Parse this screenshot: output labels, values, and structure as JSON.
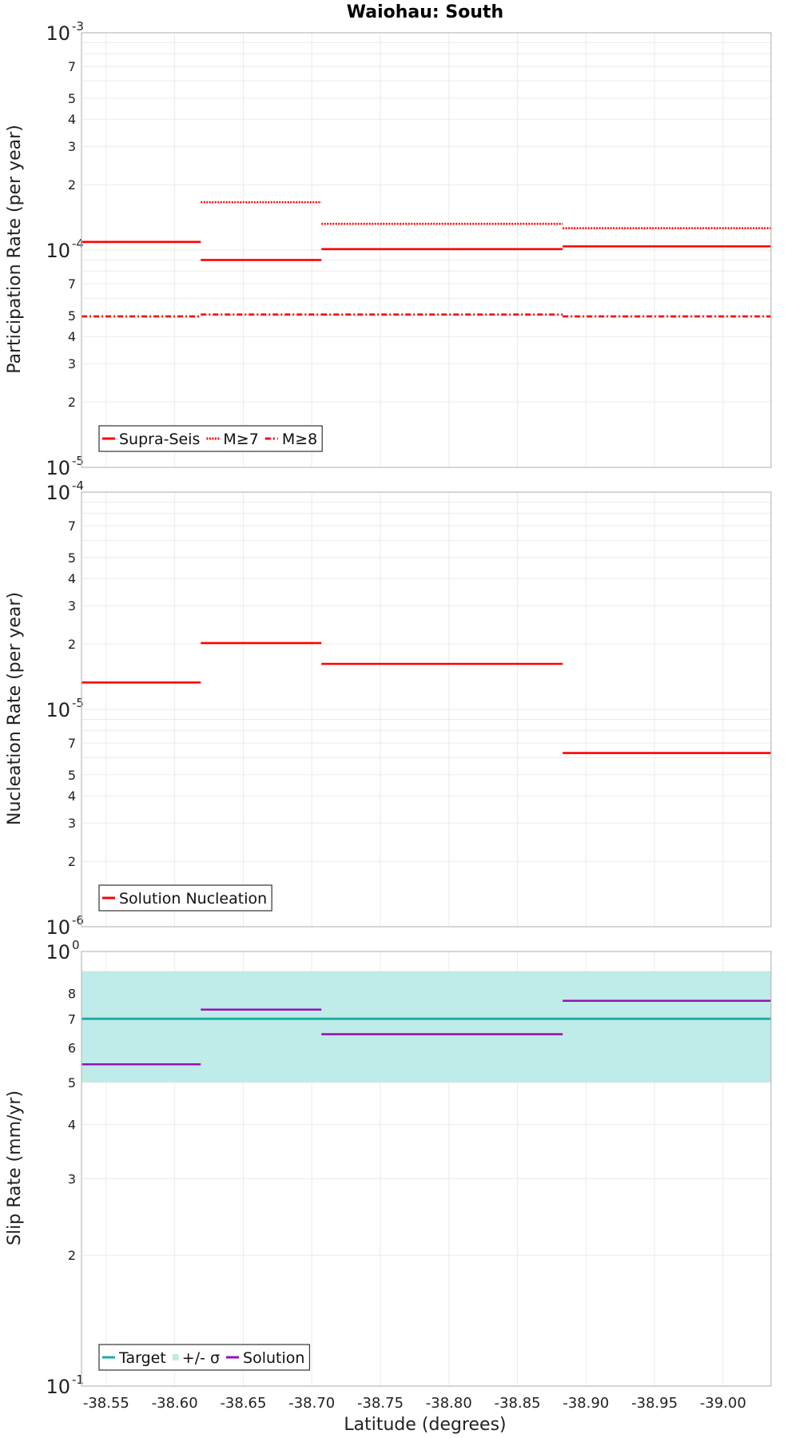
{
  "figure_title": "Waiohau: South",
  "colors": {
    "red": "#ff0000",
    "teal": "#1aaea3",
    "band": "#bfebe8",
    "purple": "#9a0fb5",
    "grid": "#ebebeb",
    "frame": "#bbbbbb"
  },
  "chart_data": [
    {
      "type": "line",
      "scale": "log",
      "ylabel": "Participation Rate (per year)",
      "ylim": [
        1e-05,
        0.001
      ],
      "decades": [
        {
          "base": "10",
          "exp": "-5",
          "value": 1e-05
        },
        {
          "base": "10",
          "exp": "-4",
          "value": 0.0001
        },
        {
          "base": "10",
          "exp": "-3",
          "value": 0.001
        }
      ],
      "minor_ticks": [
        {
          "label": "2",
          "value": 2e-05
        },
        {
          "label": "3",
          "value": 3e-05
        },
        {
          "label": "4",
          "value": 4e-05
        },
        {
          "label": "5",
          "value": 5e-05
        },
        {
          "label": "7",
          "value": 7e-05
        },
        {
          "label": "2",
          "value": 0.0002
        },
        {
          "label": "3",
          "value": 0.0003
        },
        {
          "label": "4",
          "value": 0.0004
        },
        {
          "label": "5",
          "value": 0.0005
        },
        {
          "label": "7",
          "value": 0.0007
        }
      ],
      "segment_x": [
        [
          -38.532,
          -38.619
        ],
        [
          -38.619,
          -38.707
        ],
        [
          -38.707,
          -38.883
        ],
        [
          -38.883,
          -39.035
        ]
      ],
      "series": [
        {
          "name": "Supra-Seis",
          "style": "solid",
          "color": "#ff0000",
          "values": [
            0.000109,
            9e-05,
            0.000101,
            0.000104
          ]
        },
        {
          "name": "M≥7",
          "style": "dotted",
          "color": "#ff0000",
          "values": [
            0.000109,
            0.000166,
            0.000132,
            0.000126
          ]
        },
        {
          "name": "M≥8",
          "style": "dashdot",
          "color": "#ff0000",
          "values": [
            4.95e-05,
            5.05e-05,
            5.05e-05,
            4.95e-05
          ]
        }
      ],
      "legend": {
        "position": "bottom-left",
        "entries": [
          {
            "label": "Supra-Seis",
            "style": "solid"
          },
          {
            "label": "M≥7",
            "style": "dotted"
          },
          {
            "label": "M≥8",
            "style": "dashdot"
          }
        ]
      }
    },
    {
      "type": "line",
      "scale": "log",
      "ylabel": "Nucleation Rate (per year)",
      "ylim": [
        1e-06,
        0.0001
      ],
      "decades": [
        {
          "base": "10",
          "exp": "-6",
          "value": 1e-06
        },
        {
          "base": "10",
          "exp": "-5",
          "value": 1e-05
        },
        {
          "base": "10",
          "exp": "-4",
          "value": 0.0001
        }
      ],
      "minor_ticks": [
        {
          "label": "2",
          "value": 2e-06
        },
        {
          "label": "3",
          "value": 3e-06
        },
        {
          "label": "4",
          "value": 4e-06
        },
        {
          "label": "5",
          "value": 5e-06
        },
        {
          "label": "7",
          "value": 7e-06
        },
        {
          "label": "2",
          "value": 2e-05
        },
        {
          "label": "3",
          "value": 3e-05
        },
        {
          "label": "4",
          "value": 4e-05
        },
        {
          "label": "5",
          "value": 5e-05
        },
        {
          "label": "7",
          "value": 7e-05
        }
      ],
      "segment_x": [
        [
          -38.532,
          -38.619
        ],
        [
          -38.619,
          -38.707
        ],
        [
          -38.707,
          -38.883
        ],
        [
          -38.883,
          -39.035
        ]
      ],
      "series": [
        {
          "name": "Solution Nucleation",
          "style": "solid",
          "color": "#ff0000",
          "values": [
            1.33e-05,
            2.02e-05,
            1.62e-05,
            6.3e-06
          ]
        }
      ],
      "legend": {
        "position": "bottom-left",
        "entries": [
          {
            "label": "Solution Nucleation",
            "style": "solid"
          }
        ]
      }
    },
    {
      "type": "line",
      "scale": "log",
      "ylabel": "Slip Rate (mm/yr)",
      "ylim": [
        0.1,
        1
      ],
      "decades": [
        {
          "base": "10",
          "exp": "-1",
          "value": 0.1
        },
        {
          "base": "10",
          "exp": "0",
          "value": 1
        }
      ],
      "minor_ticks": [
        {
          "label": "2",
          "value": 0.2
        },
        {
          "label": "3",
          "value": 0.3
        },
        {
          "label": "4",
          "value": 0.4
        },
        {
          "label": "5",
          "value": 0.5
        },
        {
          "label": "6",
          "value": 0.6
        },
        {
          "label": "7",
          "value": 0.7
        },
        {
          "label": "8",
          "value": 0.8
        }
      ],
      "segment_x": [
        [
          -38.532,
          -38.619
        ],
        [
          -38.619,
          -38.707
        ],
        [
          -38.707,
          -38.883
        ],
        [
          -38.883,
          -39.035
        ]
      ],
      "target": {
        "name": "Target",
        "value": 0.7,
        "lower": 0.5,
        "upper": 0.9,
        "x_range": [
          -38.532,
          -39.035
        ]
      },
      "series": [
        {
          "name": "Solution",
          "style": "solid",
          "color": "#9a0fb5",
          "values": [
            0.55,
            0.735,
            0.645,
            0.77
          ]
        }
      ],
      "legend": {
        "position": "bottom-left",
        "entries": [
          {
            "label": "Target",
            "style": "solid"
          },
          {
            "label": "+/- σ",
            "style": "band"
          },
          {
            "label": "Solution",
            "style": "solid"
          }
        ]
      }
    }
  ],
  "x_axis": {
    "label": "Latitude (degrees)",
    "range": [
      -38.532,
      -39.035
    ],
    "ticks": [
      {
        "label": "-38.55",
        "value": -38.55
      },
      {
        "label": "-38.60",
        "value": -38.6
      },
      {
        "label": "-38.65",
        "value": -38.65
      },
      {
        "label": "-38.70",
        "value": -38.7
      },
      {
        "label": "-38.75",
        "value": -38.75
      },
      {
        "label": "-38.80",
        "value": -38.8
      },
      {
        "label": "-38.85",
        "value": -38.85
      },
      {
        "label": "-38.90",
        "value": -38.9
      },
      {
        "label": "-38.95",
        "value": -38.95
      },
      {
        "label": "-39.00",
        "value": -39.0
      }
    ]
  }
}
